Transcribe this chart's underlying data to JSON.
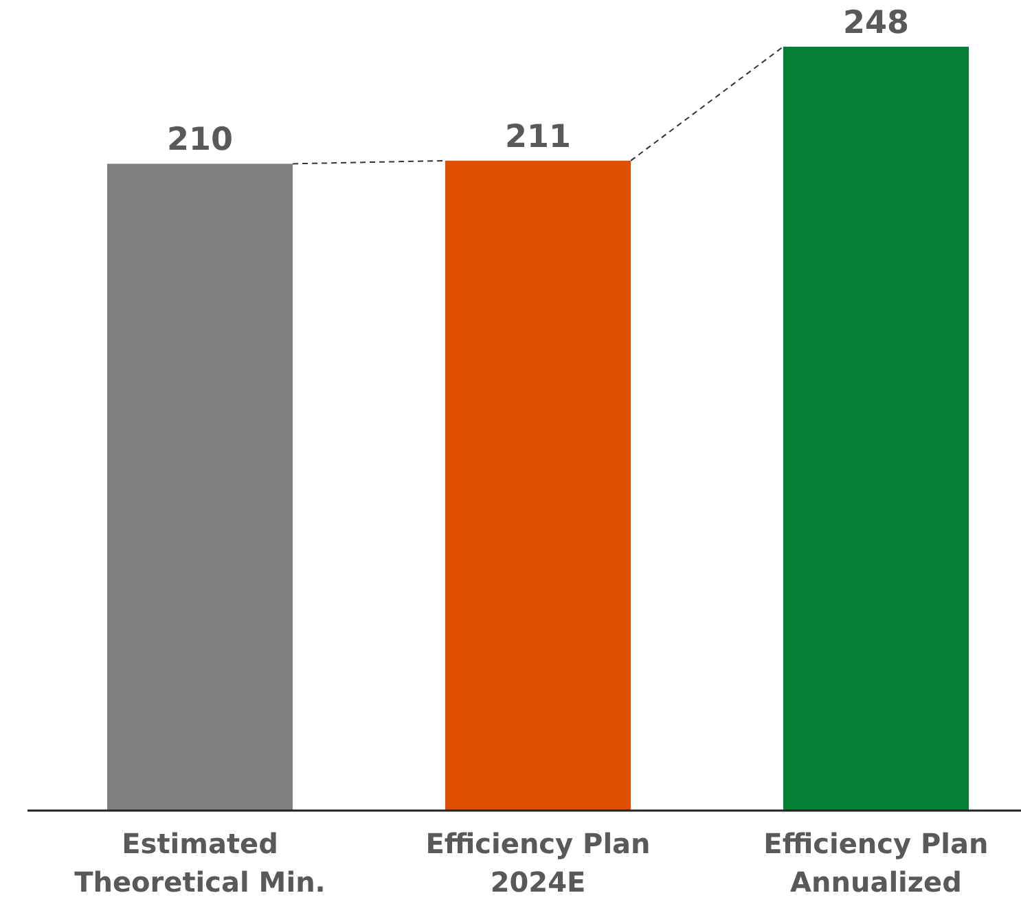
{
  "chart_data": {
    "type": "bar",
    "categories": [
      "Estimated Theoretical Min.",
      "Efficiency Plan 2024E",
      "Efficiency Plan Annualized"
    ],
    "values": [
      210,
      211,
      248
    ],
    "colors": [
      "#808080",
      "#e05000",
      "#038035"
    ],
    "data_labels": true
  }
}
